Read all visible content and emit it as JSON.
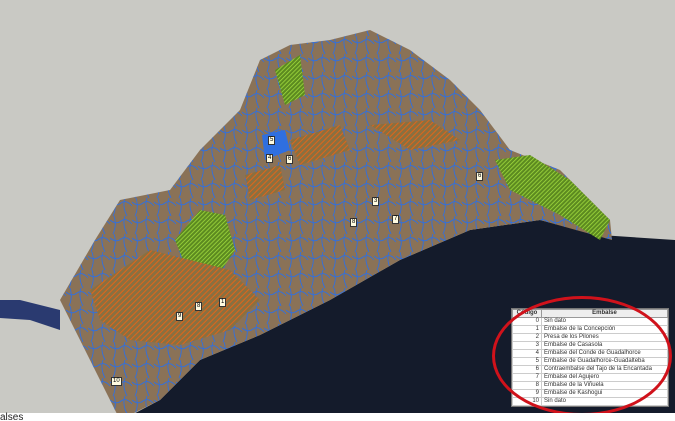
{
  "map": {
    "colors": {
      "sea": "#141b2b",
      "land_outside": "#c9c9c4",
      "terrain": "#8a7257",
      "rivers": "#2f6fe0",
      "reservoir_hatch": "#e0651a",
      "green_area": "#8bd33a",
      "highlight": "#d0121b"
    },
    "labels": [
      "5",
      "4",
      "6",
      "3",
      "8",
      "7",
      "6",
      "9",
      "8",
      "1",
      "10"
    ]
  },
  "legend": {
    "headers": {
      "code": "Código",
      "name": "Embalse"
    },
    "rows": [
      {
        "code": "0",
        "name": "Sin dato"
      },
      {
        "code": "1",
        "name": "Embalse de la Concepción"
      },
      {
        "code": "2",
        "name": "Presa de los Pilones"
      },
      {
        "code": "3",
        "name": "Embalse de Casasola"
      },
      {
        "code": "4",
        "name": "Embalse del Conde de Guadalhorce"
      },
      {
        "code": "5",
        "name": "Embalse de Guadalhorce-Guadalteba"
      },
      {
        "code": "6",
        "name": "Contraembalse del Tajo de la Encantada"
      },
      {
        "code": "7",
        "name": "Embalse del Agujero"
      },
      {
        "code": "8",
        "name": "Embalse de la Viñuela"
      },
      {
        "code": "9",
        "name": "Embalse de Kashogui"
      },
      {
        "code": "10",
        "name": "Sin dato"
      }
    ]
  },
  "footer": {
    "text": "alses"
  }
}
